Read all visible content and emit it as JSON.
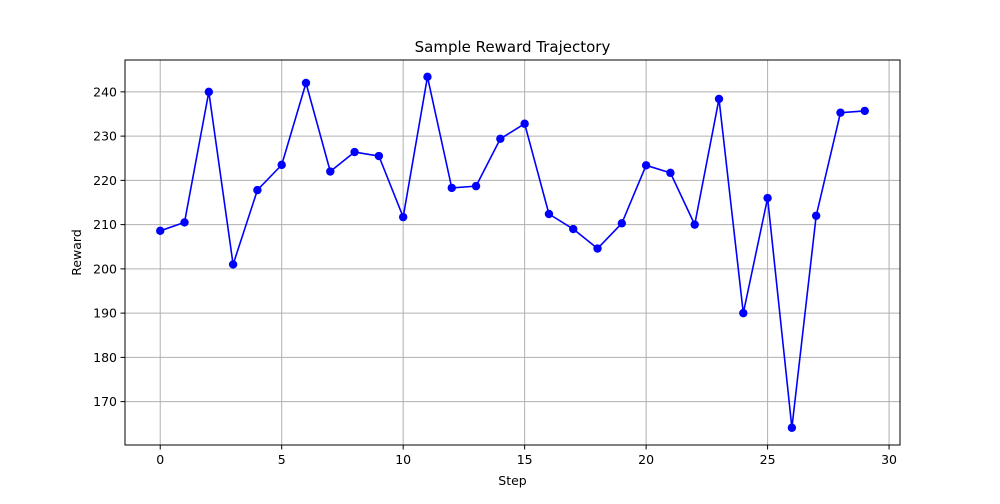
{
  "chart_data": {
    "type": "line",
    "title": "Sample Reward Trajectory",
    "xlabel": "Step",
    "ylabel": "Reward",
    "xlim": [
      -1.45,
      30.45
    ],
    "ylim": [
      160.2,
      247.2
    ],
    "xticks": [
      0,
      5,
      10,
      15,
      20,
      25,
      30
    ],
    "yticks": [
      170,
      180,
      190,
      200,
      210,
      220,
      230,
      240
    ],
    "grid": true,
    "colors": {
      "line": "#0000ff",
      "marker": "#0000ff",
      "grid": "#b0b0b0"
    },
    "series": [
      {
        "x": [
          0,
          1,
          2,
          3,
          4,
          5,
          6,
          7,
          8,
          9,
          10,
          11,
          12,
          13,
          14,
          15,
          16,
          17,
          18,
          19,
          20,
          21,
          22,
          23,
          24,
          25,
          26,
          27,
          28,
          29
        ],
        "values": [
          208.6,
          210.5,
          240.0,
          201.0,
          217.8,
          223.5,
          242.0,
          222.0,
          226.4,
          225.5,
          211.7,
          243.4,
          218.3,
          218.7,
          229.4,
          232.8,
          212.4,
          209.0,
          204.6,
          210.3,
          223.4,
          221.7,
          210.0,
          238.4,
          190.0,
          216.0,
          164.1,
          212.0,
          235.3,
          235.7
        ]
      }
    ]
  }
}
